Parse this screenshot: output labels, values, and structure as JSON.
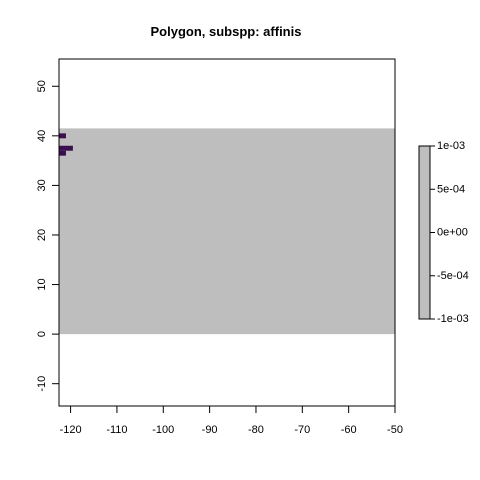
{
  "chart_data": {
    "type": "heatmap",
    "title": "Polygon, subspp: affinis",
    "xlabel": "",
    "ylabel": "",
    "xlim": [
      -122.5,
      -50
    ],
    "ylim": [
      -14.5,
      55.5
    ],
    "x_ticks": [
      -120,
      -110,
      -100,
      -90,
      -80,
      -70,
      -60,
      -50
    ],
    "y_ticks": [
      -10,
      0,
      10,
      20,
      30,
      40,
      50
    ],
    "grid": false,
    "raster": {
      "extent": {
        "xmin": -122.5,
        "xmax": -50,
        "ymin": 0,
        "ymax": 41.5
      },
      "value": 0,
      "color": "#bebebe"
    },
    "cells": [
      {
        "xmin": -122.5,
        "xmax": -121,
        "ymin": 39.5,
        "ymax": 40.5,
        "color": "#3b0f4f"
      },
      {
        "xmin": -122.5,
        "xmax": -119.5,
        "ymin": 37,
        "ymax": 38,
        "color": "#3b0f4f"
      },
      {
        "xmin": -122.5,
        "xmax": -121,
        "ymin": 36,
        "ymax": 37,
        "color": "#3b0f4f"
      }
    ],
    "legend": {
      "position": "right",
      "ticks": [
        "1e-03",
        "5e-04",
        "0e+00",
        "-5e-04",
        "-1e-03"
      ],
      "color": "#bebebe"
    }
  }
}
